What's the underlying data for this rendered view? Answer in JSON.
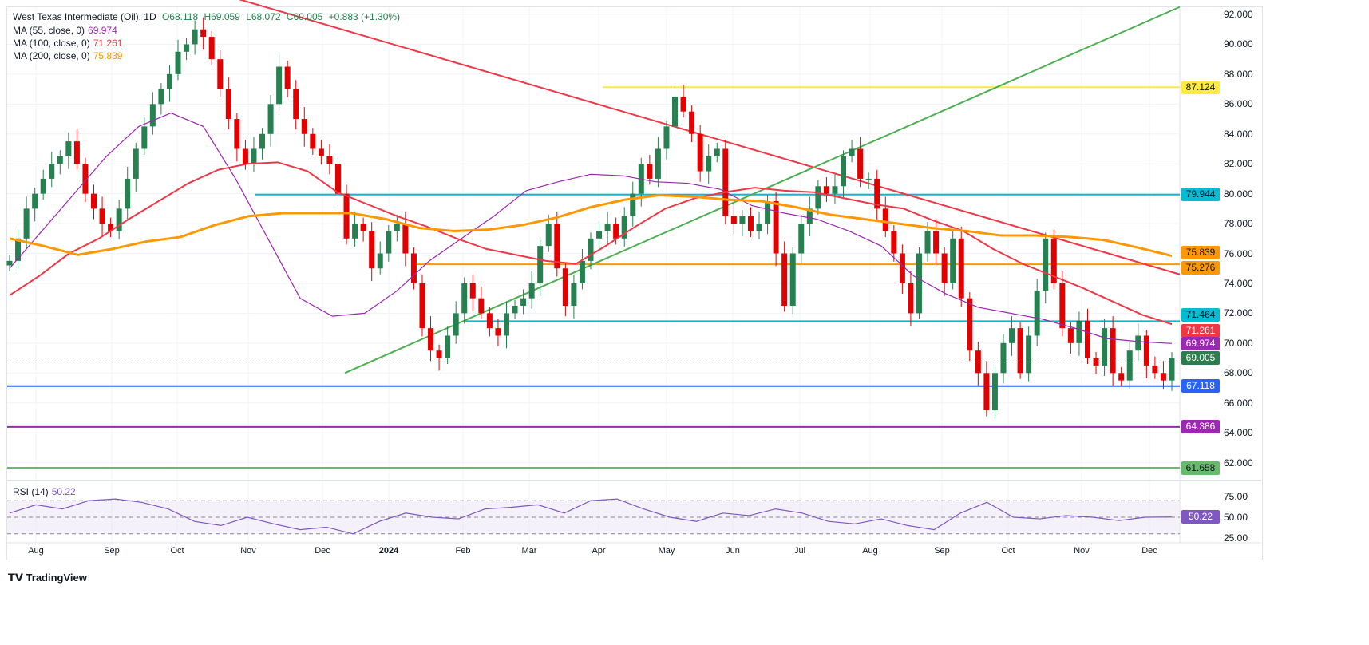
{
  "legend": {
    "title": "West Texas Intermediate (Oil), 1D",
    "open": "O68.118",
    "high": "H69.059",
    "low": "L68.072",
    "close": "C69.005",
    "change": "+0.883 (+1.30%)",
    "ma55": {
      "label": "MA (55, close, 0)",
      "value": "69.974",
      "color": "#9c27b0"
    },
    "ma100": {
      "label": "MA (100, close, 0)",
      "value": "71.261",
      "color": "#f23645"
    },
    "ma200": {
      "label": "MA (200, close, 0)",
      "value": "75.839",
      "color": "#ff9800"
    }
  },
  "rsi_legend": {
    "label": "RSI (14)",
    "value": "50.22"
  },
  "brand": "TradingView",
  "chart_data": {
    "type": "candlestick",
    "price_axis": {
      "ticks": [
        "92.000",
        "90.000",
        "88.000",
        "86.000",
        "84.000",
        "82.000",
        "80.000",
        "78.000",
        "76.000",
        "74.000",
        "72.000",
        "70.000",
        "68.000",
        "66.000",
        "64.000",
        "62.000"
      ],
      "range": [
        61,
        92.5
      ]
    },
    "months": [
      "Aug",
      "Sep",
      "Oct",
      "Nov",
      "Dec",
      "2024",
      "Feb",
      "Mar",
      "Apr",
      "May",
      "Jun",
      "Jul",
      "Aug",
      "Sep",
      "Oct",
      "Nov",
      "Dec"
    ],
    "closes": [
      75.5,
      77,
      79,
      80,
      81,
      82,
      82.5,
      83.5,
      82,
      80,
      79,
      78,
      77.5,
      79,
      81,
      83,
      84.5,
      86,
      87,
      88,
      89.5,
      90,
      91,
      90.5,
      89,
      87,
      85,
      83,
      82,
      83,
      84,
      86,
      88.5,
      87,
      85,
      84,
      83,
      82.5,
      82,
      80,
      77,
      78,
      77.5,
      75,
      76,
      77.5,
      78,
      76,
      74,
      71,
      69.5,
      69,
      70.5,
      72,
      74,
      73,
      72,
      71,
      70.5,
      72,
      72.5,
      73,
      74,
      76.5,
      78,
      75,
      72.5,
      74,
      75.5,
      77,
      77.5,
      78,
      77,
      78.5,
      80,
      82,
      81,
      83,
      84.5,
      86.5,
      85.5,
      84,
      81.5,
      82.5,
      83,
      78.5,
      78,
      78.5,
      77.5,
      78,
      79.5,
      76,
      72.5,
      76,
      78,
      79,
      80.5,
      80,
      80.5,
      82.5,
      83,
      81,
      81,
      79,
      77.5,
      76,
      74,
      72,
      76,
      77.5,
      76,
      74,
      77,
      73,
      69.5,
      68,
      65.5,
      68,
      70,
      71,
      68,
      70.5,
      73.5,
      77,
      74,
      71,
      70,
      71.5,
      69,
      68.5,
      71,
      68,
      67.5,
      69.5,
      70.5,
      68.5,
      68,
      67.5,
      69.005
    ],
    "ma55": [
      75,
      77.5,
      80,
      82.5,
      84.5,
      85.4,
      84.5,
      81,
      77,
      73,
      71.8,
      72,
      73.5,
      75.5,
      77,
      78.5,
      80.2,
      80.8,
      81.3,
      81.2,
      80.8,
      80.7,
      80.3,
      79.2,
      78.7,
      78.3,
      77.5,
      76.5,
      74.5,
      73.3,
      72.4,
      72,
      71.6,
      71,
      70.3,
      70.1,
      69.974
    ],
    "ma100": [
      73.2,
      74.5,
      76,
      77,
      78.3,
      79.5,
      80.7,
      81.6,
      82,
      82.1,
      81.5,
      80.1,
      79.3,
      78.5,
      77.8,
      77,
      76.3,
      75.9,
      75.5,
      75.3,
      76.5,
      77.8,
      79,
      79.7,
      80.1,
      80.4,
      80.2,
      80.1,
      79.7,
      79.3,
      79,
      78.2,
      77.5,
      76.3,
      75.3,
      74.5,
      73.7,
      72.8,
      71.9,
      71.261
    ],
    "ma200": [
      77,
      76.5,
      75.9,
      76.3,
      76.8,
      77.1,
      77.9,
      78.5,
      78.7,
      78.7,
      78.7,
      78.3,
      77.7,
      77.5,
      77.6,
      77.9,
      78.4,
      79.1,
      79.6,
      79.9,
      79.8,
      79.6,
      79.5,
      79.1,
      78.6,
      78.3,
      78,
      77.7,
      77.5,
      77.2,
      77.2,
      77.1,
      76.9,
      76.4,
      75.839
    ],
    "levels": [
      {
        "value": "87.124",
        "color": "#ffeb3b",
        "text": "#131722"
      },
      {
        "value": "79.944",
        "color": "#00bcd4",
        "text": "#131722"
      },
      {
        "value": "75.276",
        "color": "#ff9800",
        "text": "#131722"
      },
      {
        "value": "71.464",
        "color": "#00bcd4",
        "text": "#131722"
      },
      {
        "value": "67.118",
        "color": "#2962ff",
        "text": "#ffffff"
      },
      {
        "value": "64.386",
        "color": "#9c27b0",
        "text": "#ffffff"
      },
      {
        "value": "61.658",
        "color": "#66bb6a",
        "text": "#131722"
      }
    ],
    "last_price": {
      "value": "69.005",
      "color": "#2e7d4f"
    },
    "up_color": "#26804f",
    "down_color": "#e30000",
    "rsi": {
      "values": [
        55,
        65,
        60,
        70,
        72,
        68,
        60,
        45,
        40,
        50,
        42,
        35,
        38,
        30,
        45,
        55,
        50,
        48,
        60,
        62,
        65,
        55,
        70,
        72,
        60,
        50,
        45,
        55,
        52,
        60,
        55,
        45,
        42,
        48,
        40,
        35,
        55,
        68,
        50,
        48,
        52,
        50,
        46,
        50,
        50.22
      ],
      "ticks": [
        "75.00",
        "50.00",
        "25.00"
      ],
      "levels": [
        70,
        50,
        30
      ],
      "color": "#7e57c2"
    }
  }
}
